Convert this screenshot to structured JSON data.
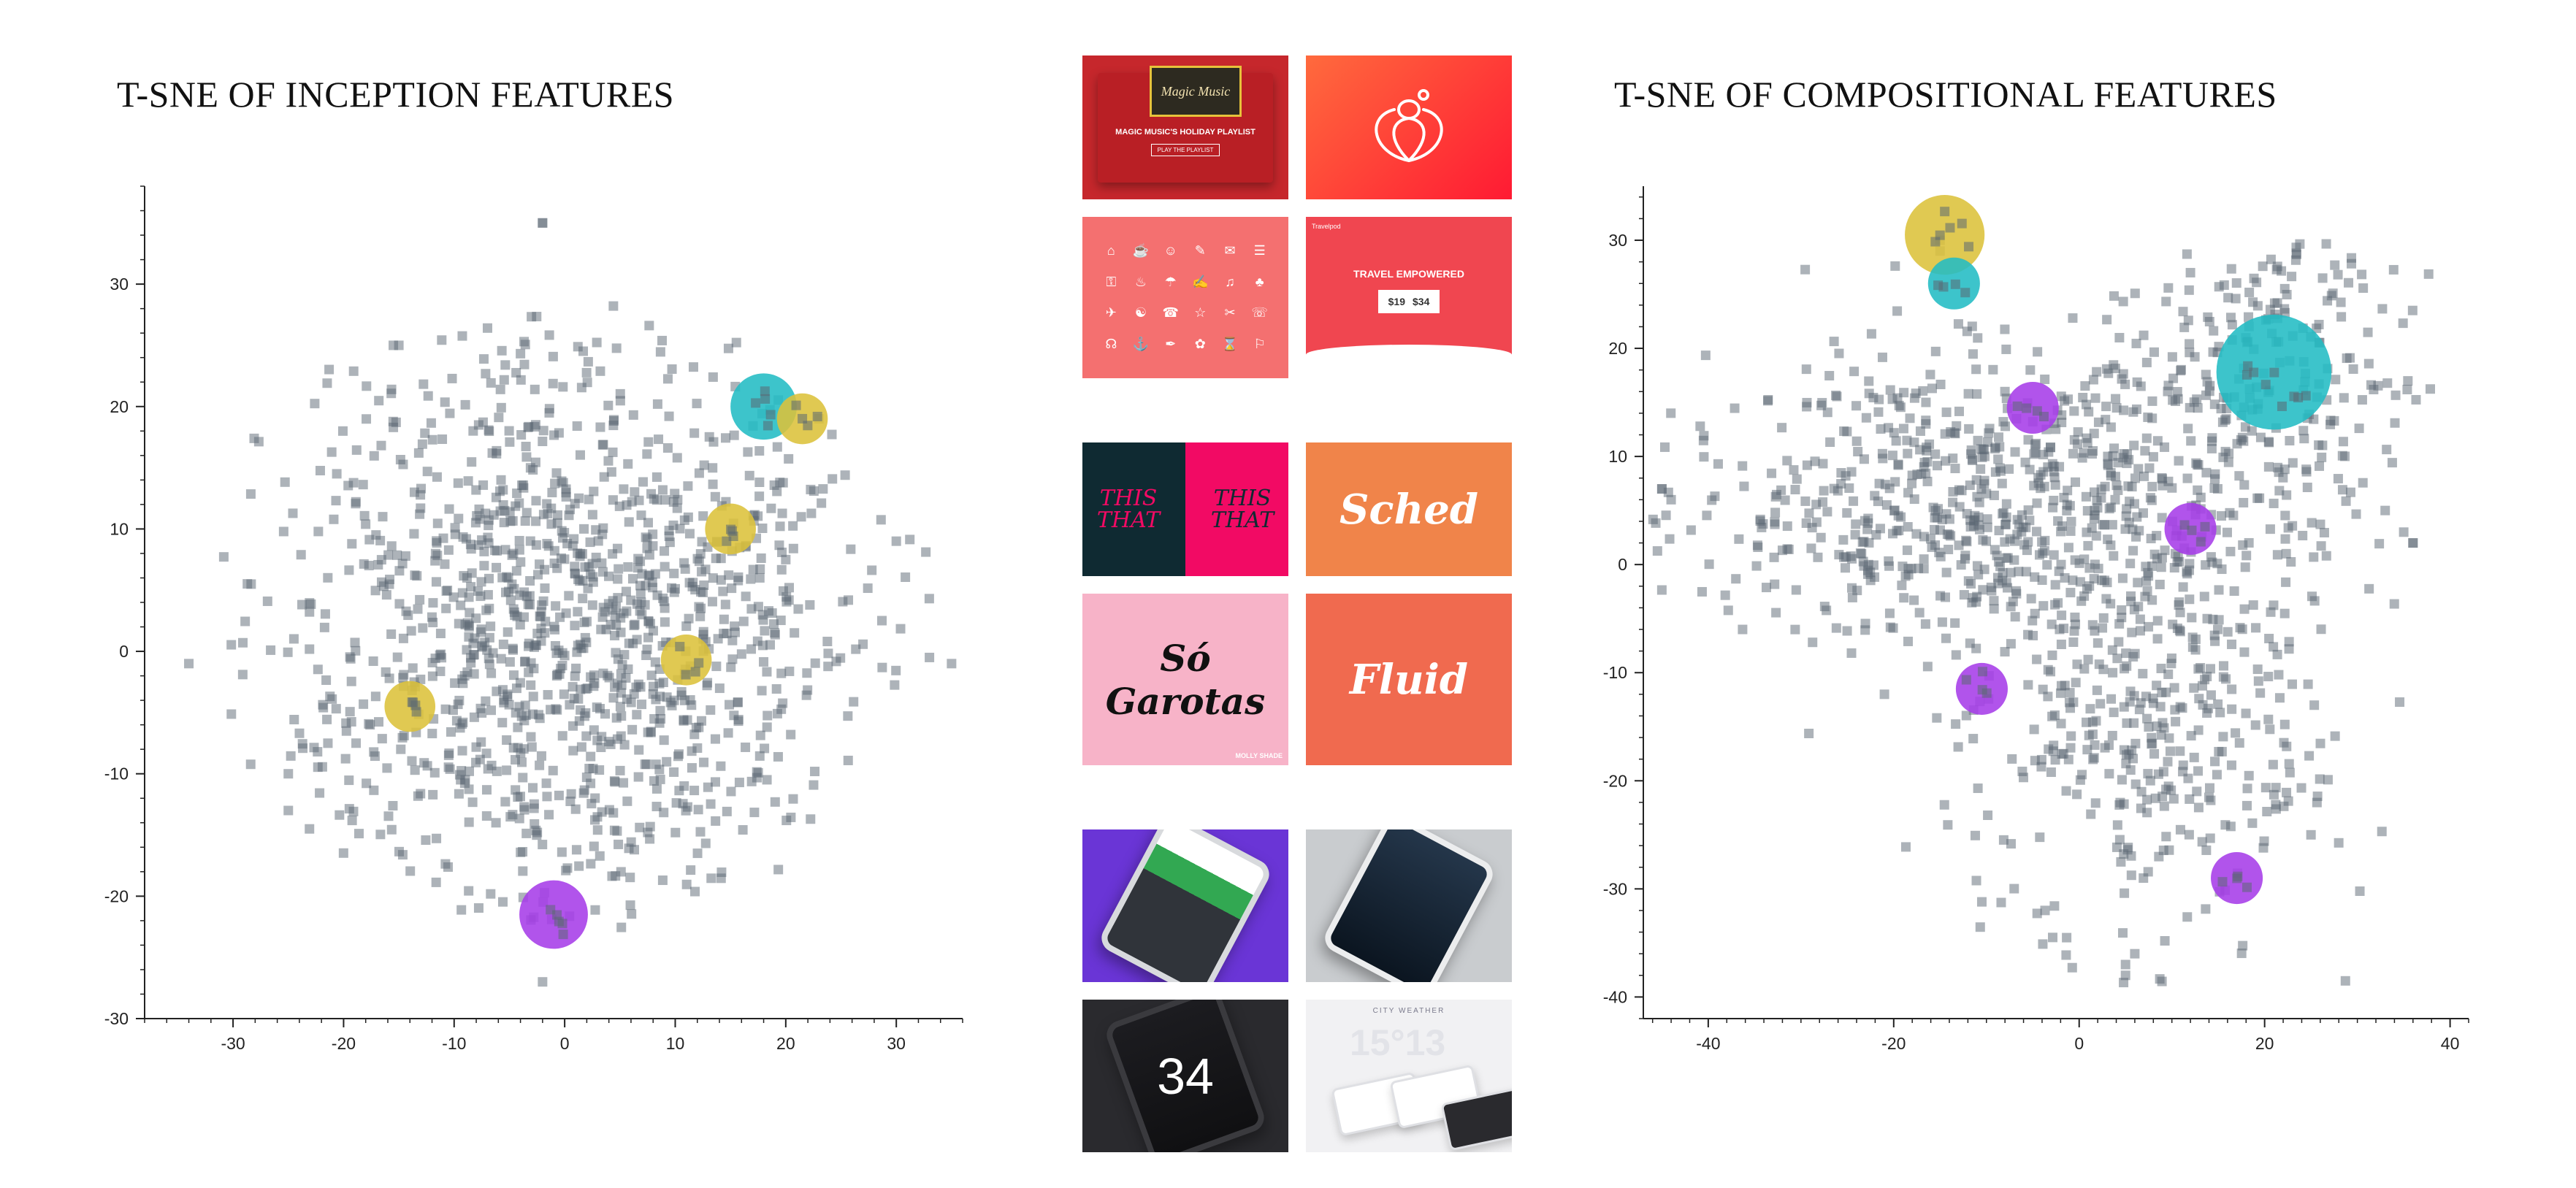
{
  "left_chart": {
    "title": "T-SNE OF INCEPTION FEATURES",
    "x_ticks": [
      "-30",
      "-20",
      "-10",
      "0",
      "10",
      "20",
      "30"
    ],
    "y_ticks": [
      "-30",
      "-20",
      "-10",
      "0",
      "10",
      "20",
      "30"
    ]
  },
  "right_chart": {
    "title": "T-SNE OF COMPOSITIONAL FEATURES",
    "x_ticks": [
      "-40",
      "-20",
      "0",
      "20",
      "40"
    ],
    "y_ticks": [
      "-40",
      "-30",
      "-20",
      "-10",
      "0",
      "10",
      "20",
      "30"
    ]
  },
  "colors": {
    "yellow": "#dcc23a",
    "teal": "#22bcc4",
    "purple": "#a63ce8",
    "point": "#5b6873",
    "axis": "#222222"
  },
  "panels": {
    "yellow": {
      "playlist_card": {
        "logo": "Magic Music",
        "headline": "MAGIC MUSIC'S HOLIDAY PLAYLIST",
        "button": "PLAY THE PLAYLIST"
      },
      "icons": [
        "⌂",
        "☕",
        "☺",
        "✎",
        "✉",
        "☰",
        "⚿",
        "♨",
        "☂",
        "✍",
        "♫",
        "♣",
        "✈",
        "☯",
        "☎",
        "☆",
        "✂",
        "☏",
        "☊",
        "⚓",
        "✒",
        "✿",
        "⌛",
        "⚐"
      ],
      "travel_card": {
        "brand": "Travelpod",
        "headline": "TRAVEL EMPOWERED",
        "prices": [
          "$19",
          "$34"
        ]
      }
    },
    "teal": {
      "this_that": [
        "THIS THAT",
        "THIS THAT"
      ],
      "sched": "Sched",
      "so_garotas": "Só Garotas",
      "so_garotas_tag": "MOLLY SHADE",
      "fluid": "Fluid"
    },
    "purple": {
      "phone3_number": "34",
      "city_label": "CITY WEATHER",
      "city_number": "15°13"
    }
  },
  "chart_data": [
    {
      "type": "scatter",
      "title": "T-SNE OF INCEPTION FEATURES",
      "xlabel": "",
      "ylabel": "",
      "xlim": [
        -38,
        36
      ],
      "ylim": [
        -30,
        38
      ],
      "grid": false,
      "series": [
        {
          "points_count": 1200,
          "color": "#5b6873",
          "sample_points": [
            [
              -2,
              35
            ],
            [
              -15,
              25
            ],
            [
              23,
              19
            ],
            [
              30,
              9
            ],
            [
              35,
              -1
            ],
            [
              -34,
              -1
            ],
            [
              -2,
              -27
            ],
            [
              -25,
              -10
            ]
          ]
        }
      ],
      "highlights": [
        {
          "group": "teal",
          "x": 18,
          "y": 20,
          "radius": 3
        },
        {
          "group": "yellow",
          "x": 21.5,
          "y": 19,
          "radius": 2.3
        },
        {
          "group": "yellow",
          "x": 15,
          "y": 10,
          "radius": 2.3
        },
        {
          "group": "yellow",
          "x": 11,
          "y": -0.7,
          "radius": 2.3
        },
        {
          "group": "yellow",
          "x": -14,
          "y": -4.5,
          "radius": 2.3
        },
        {
          "group": "purple",
          "x": -1,
          "y": -21.5,
          "radius": 3.1
        }
      ]
    },
    {
      "type": "scatter",
      "title": "T-SNE OF COMPOSITIONAL FEATURES",
      "xlabel": "",
      "ylabel": "",
      "xlim": [
        -47,
        42
      ],
      "ylim": [
        -42,
        35
      ],
      "grid": false,
      "series": [
        {
          "points_count": 1300,
          "color": "#5b6873",
          "sample_points": [
            [
              -45,
              7
            ],
            [
              -15,
              30
            ],
            [
              12,
              27
            ],
            [
              33,
              5
            ],
            [
              36,
              2
            ],
            [
              5,
              -38
            ],
            [
              -21,
              -12
            ],
            [
              25,
              -25
            ]
          ]
        }
      ],
      "highlights": [
        {
          "group": "yellow",
          "x": -14.5,
          "y": 30.5,
          "radius": 4.3
        },
        {
          "group": "teal",
          "x": -13.5,
          "y": 26,
          "radius": 2.8
        },
        {
          "group": "teal",
          "x": 21,
          "y": 17.8,
          "radius": 6.2
        },
        {
          "group": "purple",
          "x": -5,
          "y": 14.5,
          "radius": 2.8
        },
        {
          "group": "purple",
          "x": 12,
          "y": 3.3,
          "radius": 2.8
        },
        {
          "group": "purple",
          "x": -10.5,
          "y": -11.5,
          "radius": 2.8
        },
        {
          "group": "purple",
          "x": 17,
          "y": -29,
          "radius": 2.8
        }
      ]
    }
  ]
}
